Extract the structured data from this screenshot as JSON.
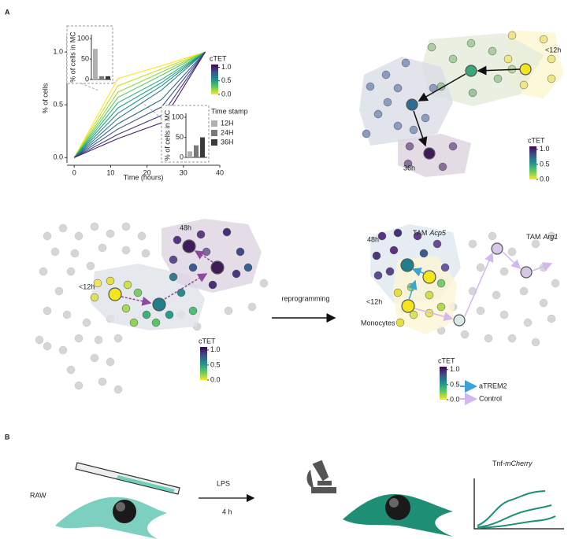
{
  "panel_labels": [
    "A",
    "B"
  ],
  "chart_data": [
    {
      "type": "line",
      "xlabel": "Time (hours)",
      "ylabel": "% of cells",
      "x": [
        0,
        12,
        24,
        36
      ],
      "xlim": [
        -2,
        40
      ],
      "xticks": [
        0,
        10,
        20,
        30,
        40
      ],
      "ylim": [
        -0.05,
        1.15
      ],
      "yticks": [
        {
          "value": 0,
          "label": "0.0"
        },
        {
          "value": 0.5,
          "label": "0.5"
        },
        {
          "value": 1,
          "label": "1.0"
        }
      ],
      "series": [
        {
          "color": "#fde725",
          "values": [
            0,
            0.75,
            0.87,
            1
          ]
        },
        {
          "color": "#c8e020",
          "values": [
            0,
            0.68,
            0.84,
            1
          ]
        },
        {
          "color": "#90d743",
          "values": [
            0,
            0.62,
            0.81,
            1
          ]
        },
        {
          "color": "#5ec962",
          "values": [
            0,
            0.57,
            0.78,
            1
          ]
        },
        {
          "color": "#35b779",
          "values": [
            0,
            0.52,
            0.74,
            1
          ]
        },
        {
          "color": "#20a486",
          "values": [
            0,
            0.47,
            0.71,
            1
          ]
        },
        {
          "color": "#21918c",
          "values": [
            0,
            0.42,
            0.68,
            1
          ]
        },
        {
          "color": "#287c8e",
          "values": [
            0,
            0.37,
            0.64,
            1
          ]
        },
        {
          "color": "#31688e",
          "values": [
            0,
            0.32,
            0.55,
            1
          ]
        },
        {
          "color": "#3b528b",
          "values": [
            0,
            0.27,
            0.48,
            1
          ]
        },
        {
          "color": "#443983",
          "values": [
            0,
            0.22,
            0.4,
            1
          ]
        },
        {
          "color": "#481f70",
          "values": [
            0,
            0.18,
            0.33,
            1
          ]
        }
      ]
    },
    {
      "type": "bar",
      "ylabel": "% of cells in MC",
      "ylim": [
        0,
        110
      ],
      "yticks": [
        0,
        50,
        100
      ],
      "series": [
        {
          "color": "#b0b0b0",
          "values": [
            75
          ]
        },
        {
          "color": "#7a7a7a",
          "values": [
            8
          ]
        },
        {
          "color": "#3a3a3a",
          "values": [
            8
          ]
        }
      ]
    },
    {
      "type": "bar",
      "ylabel": "% of cells in MC",
      "ylim": [
        0,
        110
      ],
      "yticks": [
        0,
        50,
        100
      ],
      "legend_title": "Time stamp",
      "series": [
        {
          "name": "12H",
          "color": "#b0b0b0",
          "values": [
            15
          ]
        },
        {
          "name": "24H",
          "color": "#7a7a7a",
          "values": [
            30
          ]
        },
        {
          "name": "36H",
          "color": "#3a3a3a",
          "values": [
            50
          ]
        }
      ]
    }
  ],
  "colorbars": [
    {
      "title": "cTET",
      "lim": [
        0,
        1.1
      ],
      "ticks": [
        {
          "value": 0,
          "label": "0.0"
        },
        {
          "value": 0.5,
          "label": "0.5"
        },
        {
          "value": 1,
          "label": "1.0"
        }
      ]
    },
    {
      "title": "cTET",
      "lim": [
        0,
        1.1
      ],
      "ticks": [
        {
          "value": 0,
          "label": "0.0"
        },
        {
          "value": 0.5,
          "label": "0.5"
        },
        {
          "value": 1,
          "label": "1.0"
        }
      ]
    },
    {
      "title": "cTET",
      "lim": [
        0,
        1.1
      ],
      "ticks": [
        {
          "value": 0,
          "label": "0.0"
        },
        {
          "value": 0.5,
          "label": "0.5"
        },
        {
          "value": 1,
          "label": "1.0"
        }
      ]
    },
    {
      "title": "cTET",
      "lim": [
        0,
        1.1
      ],
      "ticks": [
        {
          "value": 0,
          "label": "0.0"
        },
        {
          "value": 0.5,
          "label": "0.5"
        },
        {
          "value": 1,
          "label": "1.0"
        }
      ]
    }
  ],
  "networks": {
    "top": {
      "start": "<12h",
      "end": "36h"
    },
    "left": {
      "start": "<12h",
      "end": "48h"
    },
    "right": {
      "start": "<12h",
      "end": "48h",
      "origin": "Monocytes",
      "tam1": [
        "TAM",
        "Acp5"
      ],
      "tam2": [
        "TAM",
        "Arg1"
      ],
      "legend": [
        "aTREM2",
        "Control"
      ]
    }
  },
  "transition": "reprogramming",
  "panel_b": {
    "cell": "RAW",
    "treatment": "LPS",
    "duration": "4 h",
    "reporter": [
      "Tnf",
      "-mCherry"
    ]
  }
}
